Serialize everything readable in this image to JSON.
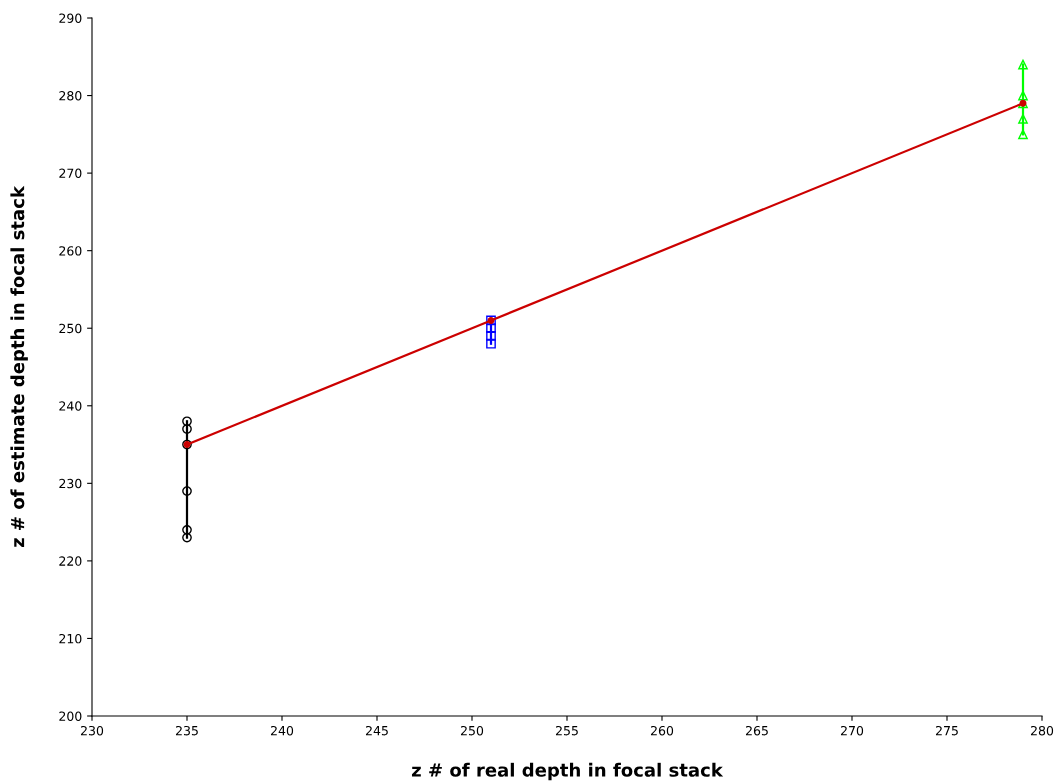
{
  "chart_data": {
    "type": "line",
    "xlabel": "z # of real depth in focal stack",
    "ylabel": "z # of estimate depth in focal stack",
    "xlim": [
      230,
      280
    ],
    "xticks": [
      230,
      235,
      240,
      245,
      250,
      255,
      260,
      265,
      270,
      275,
      280
    ],
    "ylim": [
      200,
      290
    ],
    "yticks": [
      200,
      210,
      220,
      230,
      240,
      250,
      260,
      270,
      280,
      290
    ],
    "grid": false,
    "legend": false,
    "series": [
      {
        "color": "#000000",
        "marker": "circle",
        "x": [
          235,
          235,
          235,
          235,
          235,
          235
        ],
        "values": [
          223,
          224,
          229,
          235,
          237,
          238
        ]
      },
      {
        "color": "#0000ff",
        "marker": "square",
        "x": [
          251,
          251,
          251,
          251
        ],
        "values": [
          248,
          249,
          250,
          251
        ]
      },
      {
        "color": "#00ff00",
        "marker": "triangle",
        "x": [
          279,
          279,
          279,
          279,
          279
        ],
        "values": [
          275,
          277,
          279,
          280,
          284
        ]
      },
      {
        "color": "#cc0000",
        "marker": "circle",
        "x": [
          235,
          251,
          279
        ],
        "values": [
          235,
          251,
          279
        ]
      }
    ]
  }
}
